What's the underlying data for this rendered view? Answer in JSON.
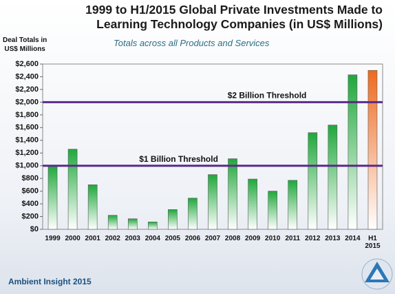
{
  "chart_data": {
    "type": "bar",
    "title": [
      "1999 to H1/2015 Global Private Investments Made to",
      "Learning Technology Companies (in US$ Millions)"
    ],
    "subtitle": "Totals across all Products and Services",
    "y_label": [
      "Deal Totals in",
      "US$ Millions"
    ],
    "categories": [
      "1999",
      "2000",
      "2001",
      "2002",
      "2003",
      "2004",
      "2005",
      "2006",
      "2007",
      "2008",
      "2009",
      "2010",
      "2011",
      "2012",
      "2013",
      "2014",
      "H1 2015"
    ],
    "values": [
      1000,
      1260,
      700,
      220,
      165,
      115,
      310,
      490,
      860,
      1110,
      790,
      600,
      770,
      1520,
      1640,
      2430,
      2500
    ],
    "colors": [
      "#1fa83c",
      "#1fa83c",
      "#1fa83c",
      "#1fa83c",
      "#1fa83c",
      "#1fa83c",
      "#1fa83c",
      "#1fa83c",
      "#1fa83c",
      "#1fa83c",
      "#1fa83c",
      "#1fa83c",
      "#1fa83c",
      "#1fa83c",
      "#1fa83c",
      "#1fa83c",
      "#ee6a1f"
    ],
    "ylim": [
      0,
      2600
    ],
    "yticks": [
      {
        "value": 0,
        "label": "$0"
      },
      {
        "value": 200,
        "label": "$200"
      },
      {
        "value": 400,
        "label": "$400"
      },
      {
        "value": 600,
        "label": "$600"
      },
      {
        "value": 800,
        "label": "$800"
      },
      {
        "value": 1000,
        "label": "$1,000"
      },
      {
        "value": 1200,
        "label": "$1,200"
      },
      {
        "value": 1400,
        "label": "$1,400"
      },
      {
        "value": 1600,
        "label": "$1,600"
      },
      {
        "value": 1800,
        "label": "$1,800"
      },
      {
        "value": 2000,
        "label": "$2,000"
      },
      {
        "value": 2200,
        "label": "$2,200"
      },
      {
        "value": 2400,
        "label": "$2,400"
      },
      {
        "value": 2600,
        "label": "$2,600"
      }
    ],
    "thresholds": [
      {
        "label": "$2 Billion Threshold",
        "value": 2000
      },
      {
        "label": "$1 Billion Threshold",
        "value": 1000
      }
    ],
    "threshold_color": "#5a2a8a",
    "grid": false,
    "footer": "Ambient Insight 2015"
  }
}
